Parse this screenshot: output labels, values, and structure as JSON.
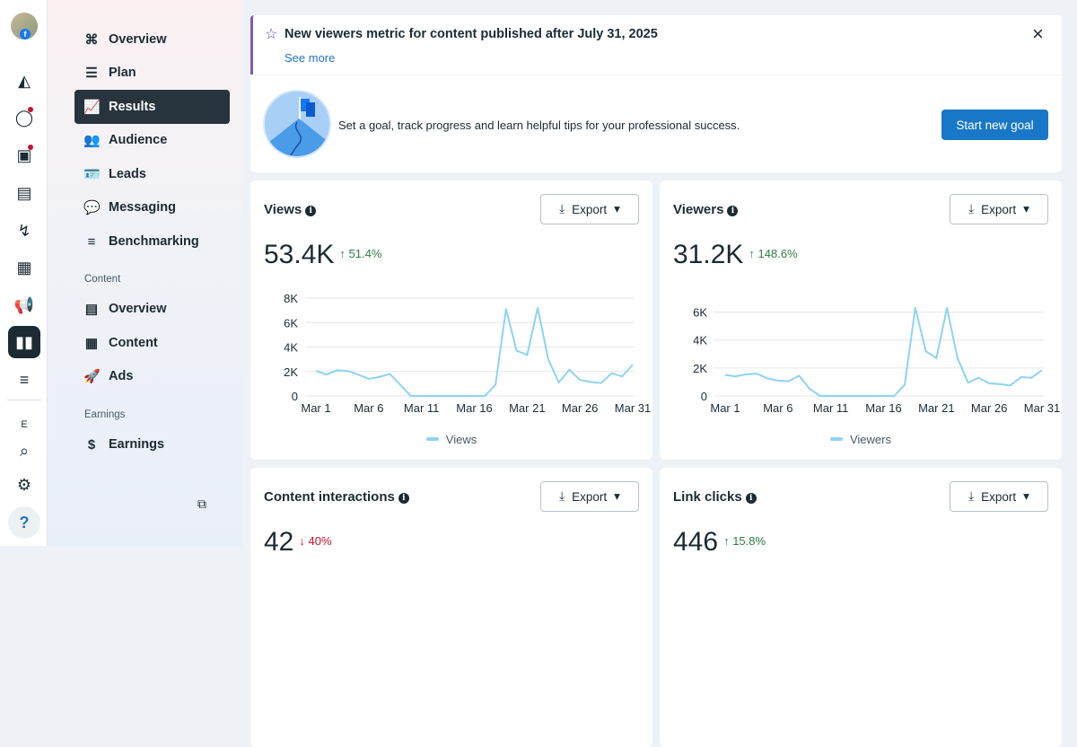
{
  "rail": {
    "icons": [
      "avatar",
      "accounts-icon",
      "compass-icon",
      "chat-icon",
      "contact-card-icon",
      "posts-icon",
      "activity-icon",
      "calendar-icon",
      "megaphone-icon",
      "insights-icon",
      "menu-icon",
      "search-icon",
      "gear-icon",
      "help-icon"
    ],
    "help_label": "?",
    "edit_label": "E"
  },
  "sidebar": {
    "items": [
      {
        "label": "Overview",
        "icon": "⌘"
      },
      {
        "label": "Plan",
        "icon": "☰"
      },
      {
        "label": "Results",
        "icon": "📈"
      },
      {
        "label": "Audience",
        "icon": "👥"
      },
      {
        "label": "Leads",
        "icon": "🪪"
      },
      {
        "label": "Messaging",
        "icon": "💬"
      },
      {
        "label": "Benchmarking",
        "icon": "≡"
      }
    ],
    "content_heading": "Content",
    "content_items": [
      {
        "label": "Overview",
        "icon": "▤"
      },
      {
        "label": "Content",
        "icon": "▦"
      },
      {
        "label": "Ads",
        "icon": "🚀"
      }
    ],
    "earnings_heading": "Earnings",
    "earnings_items": [
      {
        "label": "Earnings",
        "icon": "$"
      }
    ]
  },
  "banner": {
    "title": "New viewers metric for content published after July 31, 2025",
    "link": "See more"
  },
  "goal": {
    "text": "Set a goal, track progress and learn helpful tips for your professional success.",
    "button": "Start new goal"
  },
  "export_label": "Export",
  "cards": [
    {
      "title": "Views",
      "value": "53.4K",
      "change": "51.4%",
      "dir": "up"
    },
    {
      "title": "Viewers",
      "value": "31.2K",
      "change": "148.6%",
      "dir": "up"
    },
    {
      "title": "Content interactions",
      "value": "42",
      "change": "40%",
      "dir": "down"
    },
    {
      "title": "Link clicks",
      "value": "446",
      "change": "15.8%",
      "dir": "up"
    }
  ],
  "colors": {
    "line": "#8dd3f4",
    "accent": "#1877c6",
    "up": "#2e7d4a",
    "down": "#c8102e"
  },
  "chart_data": [
    {
      "type": "line",
      "title": "Views",
      "legend": [
        "Views"
      ],
      "x_ticks": [
        "Mar 1",
        "Mar 6",
        "Mar 11",
        "Mar 16",
        "Mar 21",
        "Mar 26",
        "Mar 31"
      ],
      "y_ticks": [
        "0",
        "2K",
        "4K",
        "6K",
        "8K"
      ],
      "ylim": [
        0,
        8000
      ],
      "x": [
        "Mar 1",
        "Mar 2",
        "Mar 3",
        "Mar 4",
        "Mar 5",
        "Mar 6",
        "Mar 7",
        "Mar 8",
        "Mar 9",
        "Mar 10",
        "Mar 11",
        "Mar 12",
        "Mar 13",
        "Mar 14",
        "Mar 15",
        "Mar 16",
        "Mar 17",
        "Mar 18",
        "Mar 19",
        "Mar 20",
        "Mar 21",
        "Mar 22",
        "Mar 23",
        "Mar 24",
        "Mar 25",
        "Mar 26",
        "Mar 27",
        "Mar 28",
        "Mar 29",
        "Mar 30",
        "Mar 31"
      ],
      "values": [
        2050,
        1750,
        2100,
        2050,
        1750,
        1400,
        1550,
        1800,
        900,
        0,
        0,
        0,
        0,
        0,
        0,
        0,
        0,
        900,
        7100,
        3700,
        3350,
        7200,
        3000,
        1100,
        2150,
        1300,
        1150,
        1050,
        1850,
        1600,
        2550
      ]
    },
    {
      "type": "line",
      "title": "Viewers",
      "legend": [
        "Viewers"
      ],
      "x_ticks": [
        "Mar 1",
        "Mar 6",
        "Mar 11",
        "Mar 16",
        "Mar 21",
        "Mar 26",
        "Mar 31"
      ],
      "y_ticks": [
        "0",
        "2K",
        "4K",
        "6K"
      ],
      "ylim": [
        0,
        7000
      ],
      "x": [
        "Mar 1",
        "Mar 2",
        "Mar 3",
        "Mar 4",
        "Mar 5",
        "Mar 6",
        "Mar 7",
        "Mar 8",
        "Mar 9",
        "Mar 10",
        "Mar 11",
        "Mar 12",
        "Mar 13",
        "Mar 14",
        "Mar 15",
        "Mar 16",
        "Mar 17",
        "Mar 18",
        "Mar 19",
        "Mar 20",
        "Mar 21",
        "Mar 22",
        "Mar 23",
        "Mar 24",
        "Mar 25",
        "Mar 26",
        "Mar 27",
        "Mar 28",
        "Mar 29",
        "Mar 30",
        "Mar 31"
      ],
      "values": [
        1500,
        1400,
        1550,
        1600,
        1250,
        1100,
        1050,
        1450,
        500,
        0,
        0,
        0,
        0,
        0,
        0,
        0,
        0,
        800,
        6300,
        3200,
        2700,
        6300,
        2700,
        950,
        1300,
        900,
        850,
        750,
        1350,
        1300,
        1850
      ]
    }
  ]
}
